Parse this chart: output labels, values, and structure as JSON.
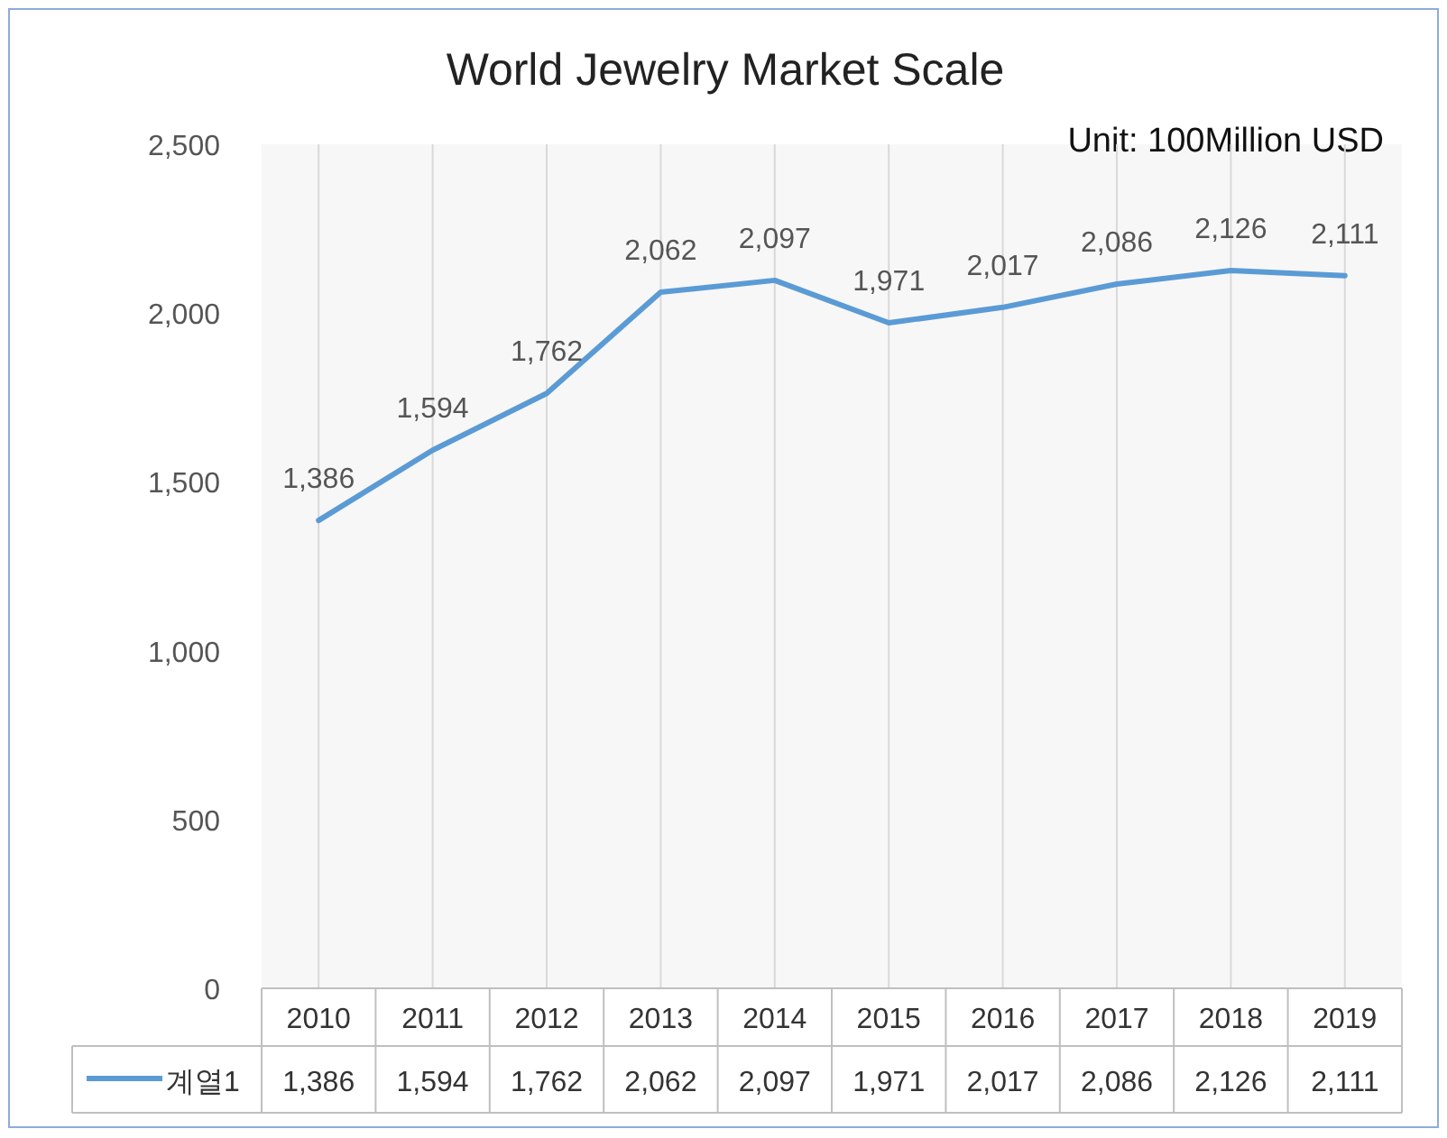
{
  "chart_data": {
    "type": "line",
    "title": "World Jewelry Market Scale",
    "annotations": [
      "Unit: 100Million USD"
    ],
    "categories": [
      "2010",
      "2011",
      "2012",
      "2013",
      "2014",
      "2015",
      "2016",
      "2017",
      "2018",
      "2019"
    ],
    "series": [
      {
        "name": "계열1",
        "color": "#5b9bd5",
        "values": [
          1386,
          1594,
          1762,
          2062,
          2097,
          1971,
          2017,
          2086,
          2126,
          2111
        ],
        "value_labels": [
          "1,386",
          "1,594",
          "1,762",
          "2,062",
          "2,097",
          "1,971",
          "2,017",
          "2,086",
          "2,126",
          "2,111"
        ]
      }
    ],
    "ylim": [
      0,
      2500
    ],
    "yticks": [
      {
        "value": 0,
        "label": "0"
      },
      {
        "value": 500,
        "label": "500"
      },
      {
        "value": 1000,
        "label": "1,000"
      },
      {
        "value": 1500,
        "label": "1,500"
      },
      {
        "value": 2000,
        "label": "2,000"
      },
      {
        "value": 2500,
        "label": "2,500"
      }
    ],
    "grid": "x",
    "legend": "bottom",
    "marker": "none",
    "line_style": "solid"
  }
}
